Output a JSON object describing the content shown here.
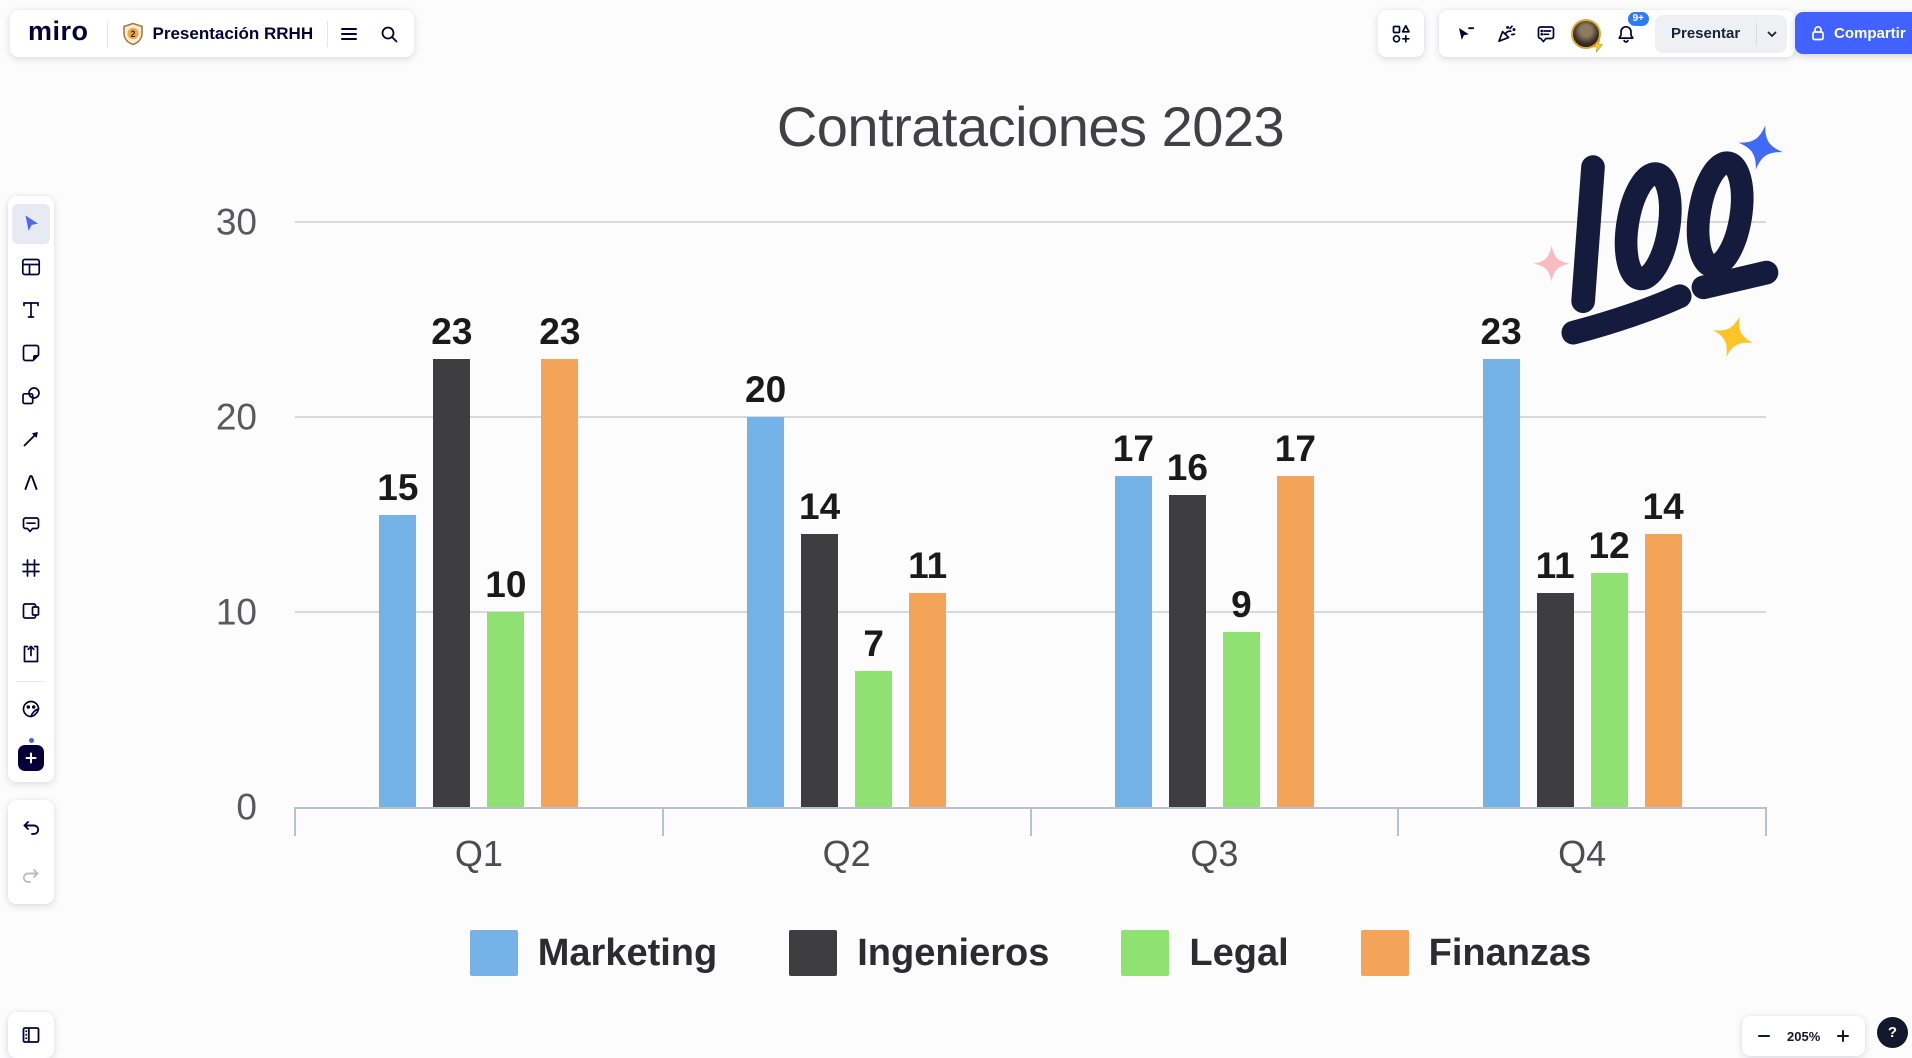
{
  "app": {
    "logo_text": "miro"
  },
  "top_bar": {
    "board_badge": "2",
    "board_name": "Presentación RRHH",
    "left_icons": [
      "plan-shield-icon",
      "board-menu-hamburger-icon",
      "search-icon"
    ],
    "right_icons": [
      "apps-icon",
      "follow-cursor-icon",
      "reactions-icon",
      "comments-icon",
      "avatar",
      "notifications-bell-icon"
    ],
    "present_button_label": "Presentar",
    "share_button_label": "Compartir",
    "notification_badge": "9+"
  },
  "left_toolbar": {
    "active_tool": "select",
    "tools": [
      "select",
      "templates",
      "text",
      "sticky-note",
      "shapes",
      "connection-arrow",
      "pen",
      "comment",
      "frame",
      "card",
      "upload",
      "sticker-emoji",
      "more-apps"
    ],
    "history": [
      "undo",
      "redo"
    ]
  },
  "bottom_bar": {
    "zoom_level": "205%",
    "help_label": "?"
  },
  "board_objects": {
    "sticker": "100-emoji-sticker"
  },
  "chart_data": {
    "type": "bar",
    "title": "Contrataciones 2023",
    "categories": [
      "Q1",
      "Q2",
      "Q3",
      "Q4"
    ],
    "series": [
      {
        "name": "Marketing",
        "color": "#74b2e8",
        "values": [
          15,
          20,
          17,
          23
        ]
      },
      {
        "name": "Ingenieros",
        "color": "#3e3e40",
        "values": [
          23,
          14,
          16,
          11
        ]
      },
      {
        "name": "Legal",
        "color": "#8fe171",
        "values": [
          10,
          7,
          9,
          12
        ]
      },
      {
        "name": "Finanzas",
        "color": "#f3a459",
        "values": [
          23,
          11,
          17,
          14
        ]
      }
    ],
    "xlabel": "",
    "ylabel": "",
    "ylim": [
      0,
      30
    ],
    "yticks": [
      0,
      10,
      20,
      30
    ],
    "grid": true,
    "bar_value_labels": true,
    "legend_position": "bottom"
  }
}
